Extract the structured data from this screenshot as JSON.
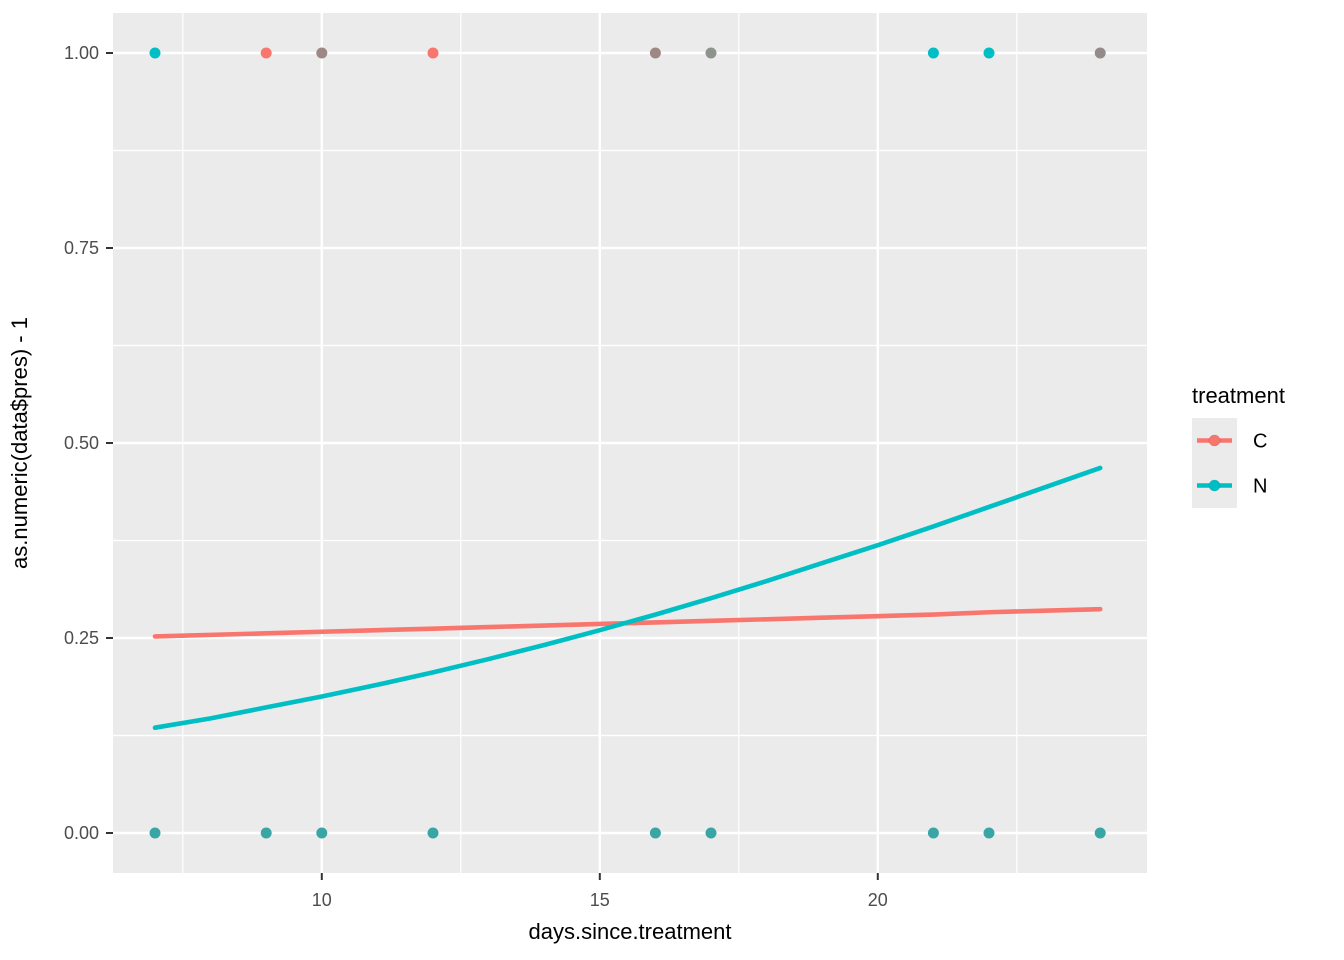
{
  "chart_data": {
    "type": "scatter",
    "title": "",
    "xlabel": "days.since.treatment",
    "ylabel": "as.numeric(data$pres) - 1",
    "grid": true,
    "legend_position": "right",
    "panel_bg": "#EBEBEB",
    "grid_color": "#FFFFFF",
    "tick_label_color": "#4D4D4D",
    "tick_mark_color": "#333333",
    "axis_title_color": "#000000",
    "legend_key_bg": "#EBEBEB",
    "xlim": [
      6.25,
      24.85
    ],
    "ylim": [
      -0.05,
      1.05
    ],
    "x_axis": {
      "ticks": [
        {
          "value": 10,
          "label": "10"
        },
        {
          "value": 15,
          "label": "15"
        },
        {
          "value": 20,
          "label": "20"
        }
      ],
      "minor": [
        7.5,
        12.5,
        17.5,
        22.5
      ]
    },
    "y_axis": {
      "ticks": [
        {
          "value": 0.0,
          "label": "0.00"
        },
        {
          "value": 0.25,
          "label": "0.25"
        },
        {
          "value": 0.5,
          "label": "0.50"
        },
        {
          "value": 0.75,
          "label": "0.75"
        },
        {
          "value": 1.0,
          "label": "1.00"
        }
      ],
      "minor": [
        0.125,
        0.375,
        0.625,
        0.875
      ]
    },
    "points": [
      {
        "day": 7,
        "value": 1,
        "color": "#00BFC4"
      },
      {
        "day": 9,
        "value": 1,
        "color": "#F8766D"
      },
      {
        "day": 10,
        "value": 1,
        "color": "#9E8886"
      },
      {
        "day": 12,
        "value": 1,
        "color": "#F8766D"
      },
      {
        "day": 16,
        "value": 1,
        "color": "#9E8886"
      },
      {
        "day": 17,
        "value": 1,
        "color": "#8F938E"
      },
      {
        "day": 21,
        "value": 1,
        "color": "#00BFC4"
      },
      {
        "day": 22,
        "value": 1,
        "color": "#00BFC4"
      },
      {
        "day": 24,
        "value": 1,
        "color": "#938B8A"
      },
      {
        "day": 7,
        "value": 0,
        "color": "#3AA5A5"
      },
      {
        "day": 9,
        "value": 0,
        "color": "#3AA5A5"
      },
      {
        "day": 10,
        "value": 0,
        "color": "#3AA5A5"
      },
      {
        "day": 12,
        "value": 0,
        "color": "#3AA5A5"
      },
      {
        "day": 16,
        "value": 0,
        "color": "#3AA5A5"
      },
      {
        "day": 17,
        "value": 0,
        "color": "#3AA5A5"
      },
      {
        "day": 21,
        "value": 0,
        "color": "#3AA5A5"
      },
      {
        "day": 22,
        "value": 0,
        "color": "#3AA5A5"
      },
      {
        "day": 24,
        "value": 0,
        "color": "#3AA5A5"
      }
    ],
    "series": [
      {
        "name": "C",
        "color": "#F8766D",
        "x": [
          7,
          8,
          9,
          10,
          11,
          12,
          13,
          14,
          15,
          16,
          17,
          18,
          19,
          20,
          21,
          22,
          23,
          24
        ],
        "y": [
          0.252,
          0.254,
          0.256,
          0.258,
          0.26,
          0.262,
          0.264,
          0.266,
          0.268,
          0.27,
          0.272,
          0.274,
          0.276,
          0.278,
          0.28,
          0.283,
          0.285,
          0.287
        ]
      },
      {
        "name": "N",
        "color": "#00BFC4",
        "x": [
          7,
          8,
          9,
          10,
          11,
          12,
          13,
          14,
          15,
          16,
          17,
          18,
          19,
          20,
          21,
          22,
          23,
          24
        ],
        "y": [
          0.135,
          0.147,
          0.161,
          0.175,
          0.19,
          0.206,
          0.223,
          0.241,
          0.26,
          0.28,
          0.301,
          0.323,
          0.346,
          0.369,
          0.393,
          0.418,
          0.443,
          0.468
        ]
      }
    ],
    "legend": {
      "title": "treatment",
      "entries": [
        {
          "label": "C",
          "color": "#F8766D"
        },
        {
          "label": "N",
          "color": "#00BFC4"
        }
      ]
    }
  }
}
